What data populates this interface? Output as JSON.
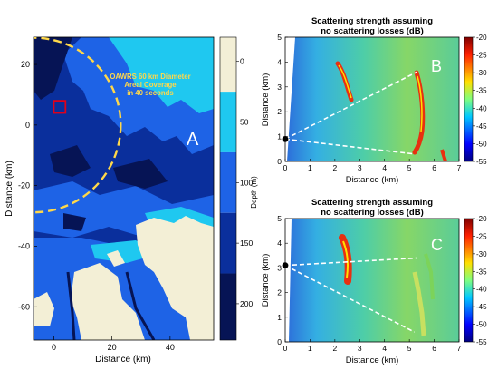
{
  "chart_data": [
    {
      "type": "heatmap",
      "panel_label": "A",
      "title": "",
      "xlabel": "Distance (km)",
      "ylabel": "Distance (km)",
      "xlim": [
        -7,
        55
      ],
      "ylim": [
        -71,
        29
      ],
      "xticks": [
        0,
        20,
        40
      ],
      "yticks": [
        20,
        0,
        -20,
        -40,
        -60
      ],
      "colorbar": {
        "label": "Depth (m)",
        "ticks": [
          0,
          50,
          100,
          150,
          200
        ],
        "range": [
          -20,
          230
        ],
        "colors": [
          "#f3efd6",
          "#1fc8f0",
          "#1e63e6",
          "#0a2f9c",
          "#061455"
        ]
      },
      "annotation": [
        "OAWRS 60 km Diameter",
        "Areal Coverage",
        "in 40 seconds"
      ],
      "coverage_circle": {
        "center": [
          -7,
          0
        ],
        "radius_km": 30
      },
      "marker_square": {
        "x": [
          0,
          4
        ],
        "y": [
          4,
          8
        ]
      },
      "colors": {
        "circle": "#ffd84a",
        "square": "#e0001a",
        "annotation": "#ffd84a"
      }
    },
    {
      "type": "heatmap",
      "panel_label": "B",
      "title": "Scattering strength assuming\nno scattering losses (dB)",
      "xlabel": "Distance (km)",
      "ylabel": "Distance (km)",
      "xlim": [
        0,
        7
      ],
      "ylim": [
        0,
        5
      ],
      "xticks": [
        0,
        1,
        2,
        3,
        4,
        5,
        6,
        7
      ],
      "yticks": [
        0,
        1,
        2,
        3,
        4,
        5
      ],
      "colorbar": {
        "ticks": [
          -20,
          -25,
          -30,
          -35,
          -40,
          -45,
          -50,
          -55
        ],
        "range": [
          -55,
          -20
        ]
      },
      "source": [
        0,
        0.9
      ],
      "beam_edges": [
        [
          5.3,
          3.6
        ],
        [
          5.2,
          0.3
        ]
      ]
    },
    {
      "type": "heatmap",
      "panel_label": "C",
      "title": "Scattering strength assuming\nno scattering losses (dB)",
      "xlabel": "Distance (km)",
      "ylabel": "Distance (km)",
      "xlim": [
        0,
        7
      ],
      "ylim": [
        0,
        5
      ],
      "xticks": [
        0,
        1,
        2,
        3,
        4,
        5,
        6,
        7
      ],
      "yticks": [
        0,
        1,
        2,
        3,
        4,
        5
      ],
      "colorbar": {
        "ticks": [
          -20,
          -25,
          -30,
          -35,
          -40,
          -45,
          -50,
          -55
        ],
        "range": [
          -55,
          -20
        ]
      },
      "source": [
        0,
        3.1
      ],
      "beam_edges": [
        [
          5.3,
          3.4
        ],
        [
          5.2,
          0.4
        ]
      ]
    }
  ]
}
